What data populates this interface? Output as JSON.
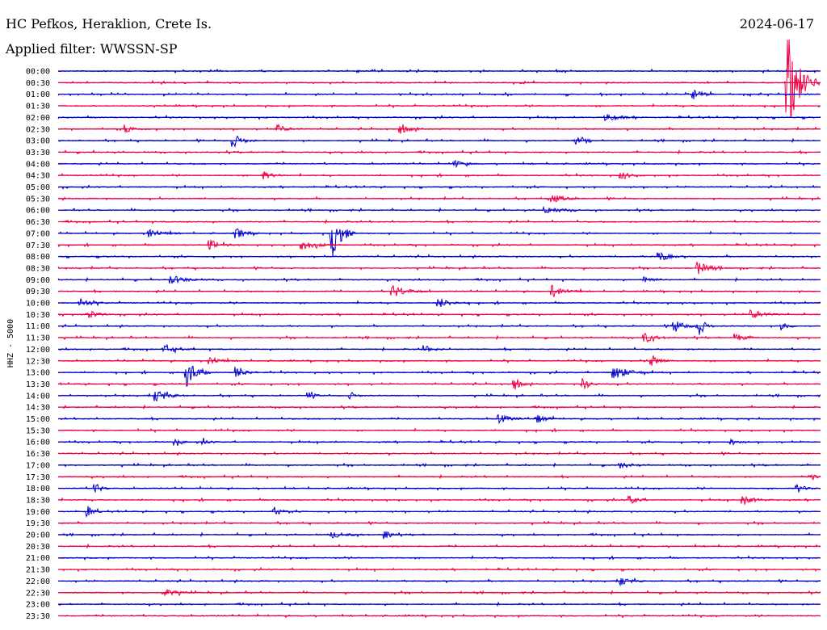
{
  "header": {
    "station": "HC Pefkos, Heraklion, Crete Is.",
    "date": "2024-06-17",
    "filter_prefix": "Applied filter:",
    "filter_name": "WWSSN-SP"
  },
  "colors": {
    "blue": "#0000cc",
    "red": "#ee0044"
  },
  "chart_data": {
    "type": "line",
    "title": "HC Pefkos, Heraklion, Crete Is.",
    "subtitle": "Applied filter: WWSSN-SP",
    "ylabel": "HHZ - 5000",
    "row_labels": [
      "00:00",
      "00:30",
      "01:00",
      "01:30",
      "02:00",
      "02:30",
      "03:00",
      "03:30",
      "04:00",
      "04:30",
      "05:00",
      "05:30",
      "06:00",
      "06:30",
      "07:00",
      "07:30",
      "08:00",
      "08:30",
      "09:00",
      "09:30",
      "10:00",
      "10:30",
      "11:00",
      "11:30",
      "12:00",
      "12:30",
      "13:00",
      "13:30",
      "14:00",
      "14:30",
      "15:00",
      "15:30",
      "16:00",
      "16:30",
      "17:00",
      "17:30",
      "18:00",
      "18:30",
      "19:00",
      "19:30",
      "20:00",
      "20:30",
      "21:00",
      "21:30",
      "22:00",
      "22:30",
      "23:00",
      "23:30"
    ],
    "row_colors": [
      "blue",
      "red",
      "blue",
      "red",
      "blue",
      "red",
      "blue",
      "red",
      "blue",
      "red",
      "blue",
      "red",
      "blue",
      "red",
      "blue",
      "red",
      "blue",
      "red",
      "blue",
      "red",
      "blue",
      "red",
      "blue",
      "red",
      "blue",
      "red",
      "blue",
      "red",
      "blue",
      "red",
      "blue",
      "red",
      "blue",
      "red",
      "blue",
      "red",
      "blue",
      "red",
      "blue",
      "red",
      "blue",
      "red",
      "blue",
      "red",
      "blue",
      "red",
      "blue",
      "red"
    ],
    "x_range": [
      0,
      1
    ],
    "events": [
      {
        "row": 1,
        "x": 0.958,
        "amp": 5,
        "dur": 0.04
      },
      {
        "row": 2,
        "x": 0.835,
        "amp": 0.5,
        "dur": 0.03
      },
      {
        "row": 4,
        "x": 0.72,
        "amp": 0.35,
        "dur": 0.05
      },
      {
        "row": 5,
        "x": 0.09,
        "amp": 0.4,
        "dur": 0.03
      },
      {
        "row": 5,
        "x": 0.29,
        "amp": 0.4,
        "dur": 0.03
      },
      {
        "row": 5,
        "x": 0.45,
        "amp": 0.5,
        "dur": 0.03
      },
      {
        "row": 6,
        "x": 0.23,
        "amp": 0.7,
        "dur": 0.03
      },
      {
        "row": 6,
        "x": 0.68,
        "amp": 0.4,
        "dur": 0.03
      },
      {
        "row": 8,
        "x": 0.52,
        "amp": 0.4,
        "dur": 0.03
      },
      {
        "row": 9,
        "x": 0.27,
        "amp": 0.4,
        "dur": 0.03
      },
      {
        "row": 9,
        "x": 0.74,
        "amp": 0.35,
        "dur": 0.03
      },
      {
        "row": 11,
        "x": 0.65,
        "amp": 0.4,
        "dur": 0.04
      },
      {
        "row": 12,
        "x": 0.64,
        "amp": 0.35,
        "dur": 0.05
      },
      {
        "row": 14,
        "x": 0.12,
        "amp": 0.5,
        "dur": 0.04
      },
      {
        "row": 14,
        "x": 0.235,
        "amp": 0.5,
        "dur": 0.03
      },
      {
        "row": 14,
        "x": 0.36,
        "amp": 2.5,
        "dur": 0.03
      },
      {
        "row": 15,
        "x": 0.2,
        "amp": 0.5,
        "dur": 0.03
      },
      {
        "row": 15,
        "x": 0.32,
        "amp": 0.5,
        "dur": 0.05
      },
      {
        "row": 16,
        "x": 0.79,
        "amp": 0.5,
        "dur": 0.03
      },
      {
        "row": 17,
        "x": 0.84,
        "amp": 0.6,
        "dur": 0.04
      },
      {
        "row": 18,
        "x": 0.15,
        "amp": 0.4,
        "dur": 0.05
      },
      {
        "row": 18,
        "x": 0.77,
        "amp": 0.4,
        "dur": 0.03
      },
      {
        "row": 19,
        "x": 0.44,
        "amp": 0.6,
        "dur": 0.05
      },
      {
        "row": 19,
        "x": 0.65,
        "amp": 0.6,
        "dur": 0.04
      },
      {
        "row": 20,
        "x": 0.03,
        "amp": 0.4,
        "dur": 0.04
      },
      {
        "row": 20,
        "x": 0.5,
        "amp": 0.5,
        "dur": 0.04
      },
      {
        "row": 21,
        "x": 0.04,
        "amp": 0.5,
        "dur": 0.03
      },
      {
        "row": 21,
        "x": 0.91,
        "amp": 0.5,
        "dur": 0.04
      },
      {
        "row": 22,
        "x": 0.81,
        "amp": 0.6,
        "dur": 0.03
      },
      {
        "row": 22,
        "x": 0.84,
        "amp": 1.2,
        "dur": 0.02
      },
      {
        "row": 22,
        "x": 0.95,
        "amp": 0.5,
        "dur": 0.02
      },
      {
        "row": 23,
        "x": 0.77,
        "amp": 0.5,
        "dur": 0.04
      },
      {
        "row": 23,
        "x": 0.89,
        "amp": 0.4,
        "dur": 0.03
      },
      {
        "row": 24,
        "x": 0.14,
        "amp": 0.4,
        "dur": 0.04
      },
      {
        "row": 24,
        "x": 0.48,
        "amp": 0.4,
        "dur": 0.03
      },
      {
        "row": 25,
        "x": 0.2,
        "amp": 0.5,
        "dur": 0.03
      },
      {
        "row": 25,
        "x": 0.78,
        "amp": 0.5,
        "dur": 0.03
      },
      {
        "row": 26,
        "x": 0.17,
        "amp": 1.5,
        "dur": 0.03
      },
      {
        "row": 26,
        "x": 0.235,
        "amp": 0.6,
        "dur": 0.03
      },
      {
        "row": 26,
        "x": 0.73,
        "amp": 0.7,
        "dur": 0.05
      },
      {
        "row": 27,
        "x": 0.6,
        "amp": 0.6,
        "dur": 0.02
      },
      {
        "row": 27,
        "x": 0.69,
        "amp": 0.6,
        "dur": 0.02
      },
      {
        "row": 28,
        "x": 0.13,
        "amp": 0.6,
        "dur": 0.04
      },
      {
        "row": 28,
        "x": 0.33,
        "amp": 0.3,
        "dur": 0.02
      },
      {
        "row": 28,
        "x": 0.385,
        "amp": 0.3,
        "dur": 0.02
      },
      {
        "row": 30,
        "x": 0.58,
        "amp": 0.4,
        "dur": 0.04
      },
      {
        "row": 30,
        "x": 0.63,
        "amp": 0.4,
        "dur": 0.03
      },
      {
        "row": 32,
        "x": 0.155,
        "amp": 0.3,
        "dur": 0.02
      },
      {
        "row": 32,
        "x": 0.19,
        "amp": 0.3,
        "dur": 0.02
      },
      {
        "row": 32,
        "x": 0.885,
        "amp": 0.3,
        "dur": 0.02
      },
      {
        "row": 34,
        "x": 0.74,
        "amp": 0.3,
        "dur": 0.03
      },
      {
        "row": 35,
        "x": 0.99,
        "amp": 0.5,
        "dur": 0.01
      },
      {
        "row": 36,
        "x": 0.05,
        "amp": 0.5,
        "dur": 0.02
      },
      {
        "row": 36,
        "x": 0.97,
        "amp": 0.4,
        "dur": 0.03
      },
      {
        "row": 37,
        "x": 0.75,
        "amp": 0.4,
        "dur": 0.03
      },
      {
        "row": 37,
        "x": 0.9,
        "amp": 0.4,
        "dur": 0.04
      },
      {
        "row": 38,
        "x": 0.04,
        "amp": 0.5,
        "dur": 0.02
      },
      {
        "row": 38,
        "x": 0.285,
        "amp": 0.5,
        "dur": 0.02
      },
      {
        "row": 40,
        "x": 0.36,
        "amp": 0.3,
        "dur": 0.05
      },
      {
        "row": 40,
        "x": 0.43,
        "amp": 0.5,
        "dur": 0.02
      },
      {
        "row": 44,
        "x": 0.74,
        "amp": 0.4,
        "dur": 0.03
      },
      {
        "row": 45,
        "x": 0.14,
        "amp": 0.4,
        "dur": 0.04
      }
    ]
  }
}
